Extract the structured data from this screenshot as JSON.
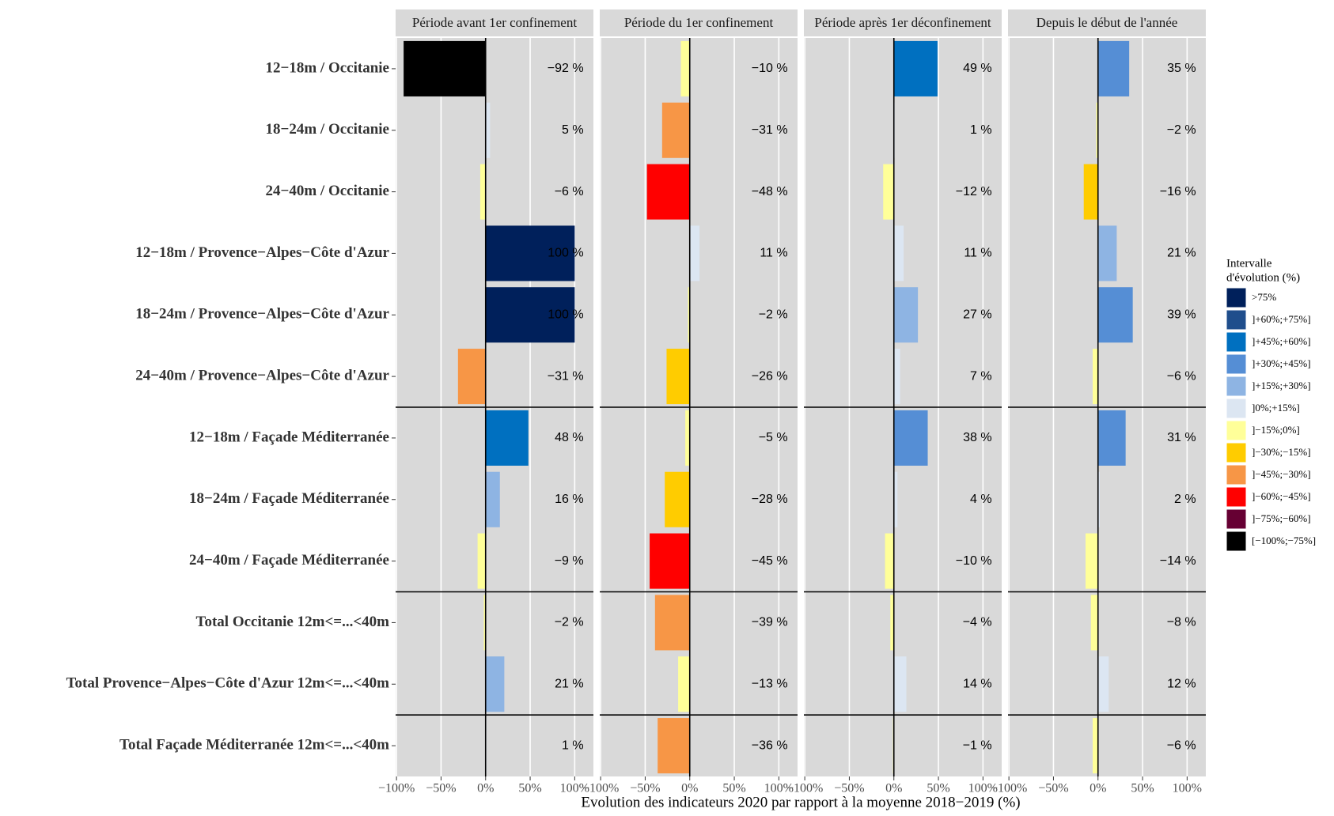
{
  "chart_data": {
    "type": "bar",
    "orientation": "horizontal",
    "categories": [
      "12−18m / Occitanie",
      "18−24m / Occitanie",
      "24−40m / Occitanie",
      "12−18m / Provence−Alpes−Côte d'Azur",
      "18−24m / Provence−Alpes−Côte d'Azur",
      "24−40m / Provence−Alpes−Côte d'Azur",
      "12−18m / Façade Méditerranée",
      "18−24m / Façade Méditerranée",
      "24−40m / Façade Méditerranée",
      "Total Occitanie 12m<=...<40m",
      "Total Provence−Alpes−Côte d'Azur 12m<=...<40m",
      "Total Façade Méditerranée 12m<=...<40m"
    ],
    "series": [
      {
        "name": "Période avant 1er confinement",
        "values": [
          -92,
          5,
          -6,
          100,
          100,
          -31,
          48,
          16,
          -9,
          -2,
          21,
          1
        ],
        "value_labels": [
          "−92 %",
          "5 %",
          "−6 %",
          "100 %",
          "100 %",
          "−31 %",
          "48 %",
          "16 %",
          "−9 %",
          "−2 %",
          "21 %",
          "1 %"
        ],
        "colors": [
          "#000000",
          "#dce6f2",
          "#ffff99",
          "#00205b",
          "#00205b",
          "#f79646",
          "#0070c0",
          "#8eb4e3",
          "#ffff99",
          "#ffff99",
          "#8eb4e3",
          "#dce6f2"
        ]
      },
      {
        "name": "Période du 1er confinement",
        "values": [
          -10,
          -31,
          -48,
          11,
          -2,
          -26,
          -5,
          -28,
          -45,
          -39,
          -13,
          -36
        ],
        "value_labels": [
          "−10 %",
          "−31 %",
          "−48 %",
          "11 %",
          "−2 %",
          "−26 %",
          "−5 %",
          "−28 %",
          "−45 %",
          "−39 %",
          "−13 %",
          "−36 %"
        ],
        "colors": [
          "#ffff99",
          "#f79646",
          "#ff0000",
          "#dce6f2",
          "#ffff99",
          "#ffcc00",
          "#ffff99",
          "#ffcc00",
          "#ff0000",
          "#f79646",
          "#ffff99",
          "#f79646"
        ]
      },
      {
        "name": "Période après 1er déconfinement",
        "values": [
          49,
          1,
          -12,
          11,
          27,
          7,
          38,
          4,
          -10,
          -4,
          14,
          -1
        ],
        "value_labels": [
          "49 %",
          "1 %",
          "−12 %",
          "11 %",
          "27 %",
          "7 %",
          "38 %",
          "4 %",
          "−10 %",
          "−4 %",
          "14 %",
          "−1 %"
        ],
        "colors": [
          "#0070c0",
          "#dce6f2",
          "#ffff99",
          "#dce6f2",
          "#8eb4e3",
          "#dce6f2",
          "#558ed5",
          "#dce6f2",
          "#ffff99",
          "#ffff99",
          "#dce6f2",
          "#ffff99"
        ]
      },
      {
        "name": "Depuis le début de l'année",
        "values": [
          35,
          -2,
          -16,
          21,
          39,
          -6,
          31,
          2,
          -14,
          -8,
          12,
          -6
        ],
        "value_labels": [
          "35 %",
          "−2 %",
          "−16 %",
          "21 %",
          "39 %",
          "−6 %",
          "31 %",
          "2 %",
          "−14 %",
          "−8 %",
          "12 %",
          "−6 %"
        ],
        "colors": [
          "#558ed5",
          "#ffff99",
          "#ffcc00",
          "#8eb4e3",
          "#558ed5",
          "#ffff99",
          "#558ed5",
          "#dce6f2",
          "#ffff99",
          "#ffff99",
          "#dce6f2",
          "#ffff99"
        ]
      }
    ],
    "xlim": [
      -101,
      121
    ],
    "xticks": [
      {
        "value": -100,
        "label": "−100%"
      },
      {
        "value": -50,
        "label": "−50%"
      },
      {
        "value": 0,
        "label": "0%"
      },
      {
        "value": 50,
        "label": "50%"
      },
      {
        "value": 100,
        "label": "100%"
      }
    ],
    "xlabel": "Evolution des indicateurs 2020 par rapport à la moyenne 2018−2019 (%)",
    "grid": true,
    "legend": {
      "title": [
        "Intervalle",
        "d'évolution (%)"
      ],
      "entries": [
        {
          "label": ">75%",
          "color": "#00205b"
        },
        {
          "label": "]+60%;+75%]",
          "color": "#1f4e8c"
        },
        {
          "label": "]+45%;+60%]",
          "color": "#0070c0"
        },
        {
          "label": "]+30%;+45%]",
          "color": "#558ed5"
        },
        {
          "label": "]+15%;+30%]",
          "color": "#8eb4e3"
        },
        {
          "label": "]0%;+15%]",
          "color": "#dce6f2"
        },
        {
          "label": "]−15%;0%]",
          "color": "#ffff99"
        },
        {
          "label": "]−30%;−15%]",
          "color": "#ffcc00"
        },
        {
          "label": "]−45%;−30%]",
          "color": "#f79646"
        },
        {
          "label": "]−60%;−45%]",
          "color": "#ff0000"
        },
        {
          "label": "]−75%;−60%]",
          "color": "#660033"
        },
        {
          "label": "[−100%;−75%]",
          "color": "#000000"
        }
      ]
    }
  }
}
